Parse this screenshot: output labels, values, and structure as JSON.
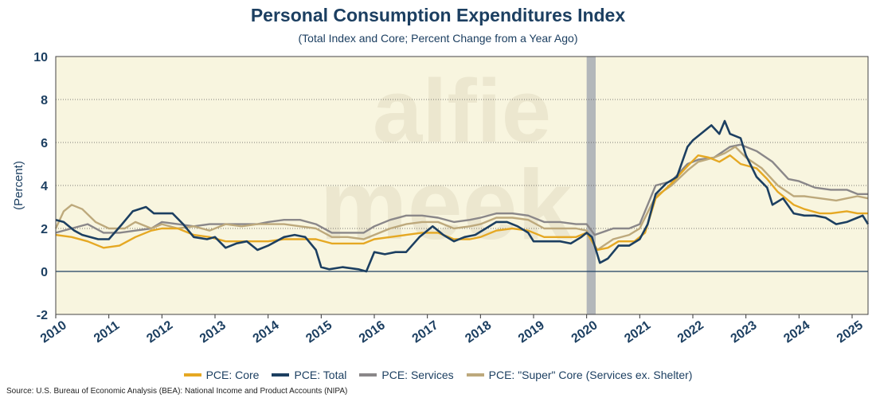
{
  "title": "Personal Consumption Expenditures Index",
  "subtitle": "(Total Index and Core; Percent Change from a Year Ago)",
  "source": "Source: U.S. Bureau of Economic Analysis (BEA): National Income and Product Accounts (NIPA)",
  "watermark": [
    "alfie",
    "meek"
  ],
  "colors": {
    "background": "#f8f5df",
    "core": "#e5a823",
    "total": "#1c3f61",
    "services": "#8a8789",
    "supercore": "#bda97c",
    "recession": "#b3b7ba",
    "axis_text": "#1c3f61"
  },
  "legend": [
    {
      "label": "PCE: Core",
      "color": "#e5a823"
    },
    {
      "label": "PCE: Total",
      "color": "#1c3f61"
    },
    {
      "label": "PCE: Services",
      "color": "#8a8789"
    },
    {
      "label": "PCE: \"Super\" Core (Services ex. Shelter)",
      "color": "#bda97c"
    }
  ],
  "chart_data": {
    "type": "line",
    "ylabel": "(Percent)",
    "ylim": [
      -2,
      10
    ],
    "yticks": [
      -2,
      0,
      2,
      4,
      6,
      8,
      10
    ],
    "xlim": [
      2010,
      2025.3
    ],
    "xticks": [
      "2010",
      "2011",
      "2012",
      "2013",
      "2014",
      "2015",
      "2016",
      "2017",
      "2018",
      "2019",
      "2020",
      "2021",
      "2022",
      "2023",
      "2024",
      "2025"
    ],
    "grid": "horizontal dotted",
    "recession": [
      2020.0,
      2020.17
    ],
    "series": [
      {
        "name": "PCE: Core",
        "points": [
          [
            2010.0,
            1.7
          ],
          [
            2010.3,
            1.6
          ],
          [
            2010.6,
            1.4
          ],
          [
            2010.9,
            1.1
          ],
          [
            2011.2,
            1.2
          ],
          [
            2011.5,
            1.6
          ],
          [
            2011.8,
            1.9
          ],
          [
            2012.0,
            2.0
          ],
          [
            2012.3,
            2.0
          ],
          [
            2012.6,
            1.7
          ],
          [
            2012.9,
            1.6
          ],
          [
            2013.2,
            1.4
          ],
          [
            2013.5,
            1.4
          ],
          [
            2013.8,
            1.4
          ],
          [
            2014.0,
            1.4
          ],
          [
            2014.3,
            1.5
          ],
          [
            2014.6,
            1.5
          ],
          [
            2014.9,
            1.5
          ],
          [
            2015.2,
            1.3
          ],
          [
            2015.5,
            1.3
          ],
          [
            2015.8,
            1.3
          ],
          [
            2016.0,
            1.5
          ],
          [
            2016.3,
            1.6
          ],
          [
            2016.6,
            1.7
          ],
          [
            2016.9,
            1.8
          ],
          [
            2017.2,
            1.8
          ],
          [
            2017.5,
            1.5
          ],
          [
            2017.8,
            1.5
          ],
          [
            2018.0,
            1.6
          ],
          [
            2018.3,
            1.9
          ],
          [
            2018.6,
            2.0
          ],
          [
            2018.9,
            1.9
          ],
          [
            2019.2,
            1.6
          ],
          [
            2019.5,
            1.6
          ],
          [
            2019.8,
            1.6
          ],
          [
            2020.0,
            1.8
          ],
          [
            2020.2,
            1.0
          ],
          [
            2020.4,
            1.1
          ],
          [
            2020.6,
            1.4
          ],
          [
            2020.9,
            1.4
          ],
          [
            2021.1,
            1.8
          ],
          [
            2021.3,
            3.4
          ],
          [
            2021.6,
            4.1
          ],
          [
            2021.9,
            4.9
          ],
          [
            2022.1,
            5.4
          ],
          [
            2022.3,
            5.3
          ],
          [
            2022.5,
            5.1
          ],
          [
            2022.7,
            5.4
          ],
          [
            2022.9,
            5.0
          ],
          [
            2023.2,
            4.8
          ],
          [
            2023.4,
            4.3
          ],
          [
            2023.6,
            3.7
          ],
          [
            2023.9,
            3.1
          ],
          [
            2024.1,
            2.9
          ],
          [
            2024.4,
            2.7
          ],
          [
            2024.6,
            2.7
          ],
          [
            2024.9,
            2.8
          ],
          [
            2025.1,
            2.7
          ],
          [
            2025.3,
            2.7
          ]
        ]
      },
      {
        "name": "PCE: Total",
        "points": [
          [
            2010.0,
            2.4
          ],
          [
            2010.15,
            2.3
          ],
          [
            2010.35,
            1.9
          ],
          [
            2010.5,
            1.7
          ],
          [
            2010.8,
            1.5
          ],
          [
            2011.0,
            1.5
          ],
          [
            2011.25,
            2.2
          ],
          [
            2011.45,
            2.8
          ],
          [
            2011.7,
            3.0
          ],
          [
            2011.85,
            2.7
          ],
          [
            2012.2,
            2.7
          ],
          [
            2012.4,
            2.2
          ],
          [
            2012.6,
            1.6
          ],
          [
            2012.85,
            1.5
          ],
          [
            2013.0,
            1.6
          ],
          [
            2013.2,
            1.1
          ],
          [
            2013.4,
            1.3
          ],
          [
            2013.6,
            1.4
          ],
          [
            2013.8,
            1.0
          ],
          [
            2014.0,
            1.2
          ],
          [
            2014.3,
            1.6
          ],
          [
            2014.5,
            1.7
          ],
          [
            2014.7,
            1.6
          ],
          [
            2014.9,
            1.0
          ],
          [
            2015.0,
            0.2
          ],
          [
            2015.15,
            0.1
          ],
          [
            2015.4,
            0.2
          ],
          [
            2015.7,
            0.1
          ],
          [
            2015.85,
            0.0
          ],
          [
            2016.0,
            0.9
          ],
          [
            2016.2,
            0.8
          ],
          [
            2016.4,
            0.9
          ],
          [
            2016.6,
            0.9
          ],
          [
            2016.85,
            1.6
          ],
          [
            2017.1,
            2.1
          ],
          [
            2017.3,
            1.7
          ],
          [
            2017.5,
            1.4
          ],
          [
            2017.7,
            1.6
          ],
          [
            2017.9,
            1.7
          ],
          [
            2018.1,
            2.0
          ],
          [
            2018.3,
            2.3
          ],
          [
            2018.5,
            2.3
          ],
          [
            2018.7,
            2.1
          ],
          [
            2018.9,
            1.8
          ],
          [
            2019.0,
            1.4
          ],
          [
            2019.2,
            1.4
          ],
          [
            2019.5,
            1.4
          ],
          [
            2019.7,
            1.3
          ],
          [
            2019.9,
            1.6
          ],
          [
            2020.0,
            1.8
          ],
          [
            2020.1,
            1.6
          ],
          [
            2020.25,
            0.4
          ],
          [
            2020.4,
            0.6
          ],
          [
            2020.6,
            1.2
          ],
          [
            2020.8,
            1.2
          ],
          [
            2021.0,
            1.5
          ],
          [
            2021.15,
            2.2
          ],
          [
            2021.3,
            3.6
          ],
          [
            2021.5,
            4.1
          ],
          [
            2021.7,
            4.4
          ],
          [
            2021.9,
            5.8
          ],
          [
            2022.0,
            6.1
          ],
          [
            2022.2,
            6.5
          ],
          [
            2022.35,
            6.8
          ],
          [
            2022.5,
            6.4
          ],
          [
            2022.6,
            7.0
          ],
          [
            2022.7,
            6.4
          ],
          [
            2022.9,
            6.2
          ],
          [
            2023.0,
            5.4
          ],
          [
            2023.2,
            4.4
          ],
          [
            2023.4,
            3.9
          ],
          [
            2023.5,
            3.1
          ],
          [
            2023.7,
            3.4
          ],
          [
            2023.9,
            2.7
          ],
          [
            2024.1,
            2.6
          ],
          [
            2024.3,
            2.6
          ],
          [
            2024.5,
            2.5
          ],
          [
            2024.7,
            2.2
          ],
          [
            2024.9,
            2.3
          ],
          [
            2025.1,
            2.5
          ],
          [
            2025.2,
            2.6
          ],
          [
            2025.3,
            2.2
          ]
        ]
      },
      {
        "name": "PCE: Services",
        "points": [
          [
            2010.0,
            1.8
          ],
          [
            2010.3,
            2.0
          ],
          [
            2010.6,
            2.2
          ],
          [
            2010.9,
            1.8
          ],
          [
            2011.2,
            1.8
          ],
          [
            2011.5,
            1.9
          ],
          [
            2011.8,
            2.0
          ],
          [
            2012.0,
            2.3
          ],
          [
            2012.3,
            2.2
          ],
          [
            2012.6,
            2.1
          ],
          [
            2012.9,
            2.2
          ],
          [
            2013.2,
            2.2
          ],
          [
            2013.5,
            2.2
          ],
          [
            2013.8,
            2.2
          ],
          [
            2014.0,
            2.3
          ],
          [
            2014.3,
            2.4
          ],
          [
            2014.6,
            2.4
          ],
          [
            2014.9,
            2.2
          ],
          [
            2015.2,
            1.8
          ],
          [
            2015.5,
            1.8
          ],
          [
            2015.8,
            1.8
          ],
          [
            2016.0,
            2.1
          ],
          [
            2016.3,
            2.4
          ],
          [
            2016.6,
            2.6
          ],
          [
            2016.9,
            2.6
          ],
          [
            2017.2,
            2.5
          ],
          [
            2017.5,
            2.3
          ],
          [
            2017.8,
            2.4
          ],
          [
            2018.0,
            2.5
          ],
          [
            2018.3,
            2.7
          ],
          [
            2018.6,
            2.7
          ],
          [
            2018.9,
            2.6
          ],
          [
            2019.2,
            2.3
          ],
          [
            2019.5,
            2.3
          ],
          [
            2019.8,
            2.2
          ],
          [
            2020.0,
            2.2
          ],
          [
            2020.15,
            1.7
          ],
          [
            2020.5,
            2.0
          ],
          [
            2020.8,
            2.0
          ],
          [
            2021.0,
            2.2
          ],
          [
            2021.3,
            4.0
          ],
          [
            2021.6,
            4.2
          ],
          [
            2021.9,
            5.0
          ],
          [
            2022.1,
            5.2
          ],
          [
            2022.4,
            5.3
          ],
          [
            2022.7,
            5.8
          ],
          [
            2022.9,
            5.9
          ],
          [
            2023.2,
            5.6
          ],
          [
            2023.5,
            5.1
          ],
          [
            2023.8,
            4.3
          ],
          [
            2024.0,
            4.2
          ],
          [
            2024.3,
            3.9
          ],
          [
            2024.6,
            3.8
          ],
          [
            2024.9,
            3.8
          ],
          [
            2025.1,
            3.6
          ],
          [
            2025.3,
            3.6
          ]
        ]
      },
      {
        "name": "PCE: \"Super\" Core (Services ex. Shelter)",
        "points": [
          [
            2010.0,
            2.0
          ],
          [
            2010.15,
            2.8
          ],
          [
            2010.3,
            3.1
          ],
          [
            2010.5,
            2.9
          ],
          [
            2010.75,
            2.3
          ],
          [
            2011.0,
            2.0
          ],
          [
            2011.3,
            2.0
          ],
          [
            2011.5,
            2.3
          ],
          [
            2011.8,
            2.0
          ],
          [
            2012.0,
            2.2
          ],
          [
            2012.3,
            2.0
          ],
          [
            2012.6,
            2.1
          ],
          [
            2012.9,
            1.9
          ],
          [
            2013.2,
            2.2
          ],
          [
            2013.5,
            2.1
          ],
          [
            2013.8,
            2.2
          ],
          [
            2014.0,
            2.2
          ],
          [
            2014.3,
            2.2
          ],
          [
            2014.6,
            2.1
          ],
          [
            2014.9,
            2.0
          ],
          [
            2015.2,
            1.6
          ],
          [
            2015.5,
            1.6
          ],
          [
            2015.8,
            1.5
          ],
          [
            2016.0,
            1.7
          ],
          [
            2016.3,
            2.0
          ],
          [
            2016.6,
            2.2
          ],
          [
            2016.9,
            2.3
          ],
          [
            2017.2,
            2.3
          ],
          [
            2017.5,
            2.0
          ],
          [
            2017.8,
            2.1
          ],
          [
            2018.0,
            2.2
          ],
          [
            2018.3,
            2.5
          ],
          [
            2018.6,
            2.5
          ],
          [
            2018.9,
            2.4
          ],
          [
            2019.2,
            2.0
          ],
          [
            2019.5,
            2.0
          ],
          [
            2019.8,
            2.0
          ],
          [
            2020.0,
            1.9
          ],
          [
            2020.2,
            1.0
          ],
          [
            2020.5,
            1.5
          ],
          [
            2020.8,
            1.7
          ],
          [
            2021.0,
            2.0
          ],
          [
            2021.3,
            3.5
          ],
          [
            2021.6,
            4.0
          ],
          [
            2021.9,
            4.7
          ],
          [
            2022.1,
            5.1
          ],
          [
            2022.4,
            5.3
          ],
          [
            2022.6,
            5.5
          ],
          [
            2022.8,
            5.8
          ],
          [
            2023.0,
            5.3
          ],
          [
            2023.3,
            4.8
          ],
          [
            2023.6,
            4.0
          ],
          [
            2023.9,
            3.5
          ],
          [
            2024.1,
            3.5
          ],
          [
            2024.4,
            3.4
          ],
          [
            2024.7,
            3.3
          ],
          [
            2024.9,
            3.4
          ],
          [
            2025.1,
            3.5
          ],
          [
            2025.3,
            3.4
          ]
        ]
      }
    ]
  }
}
